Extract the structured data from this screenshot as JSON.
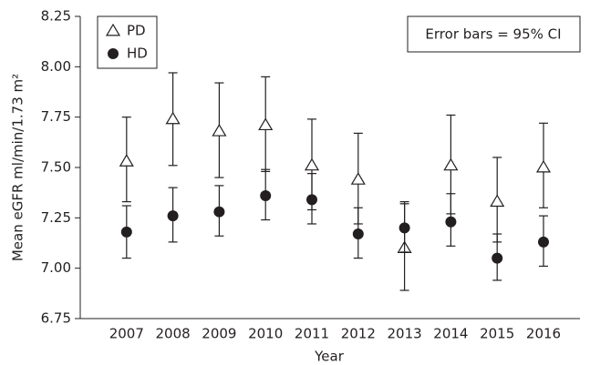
{
  "chart_data": {
    "type": "errorbar",
    "y_label": "Mean eGFR ml/min/1.73 m²",
    "x_label": "Year",
    "annotation": "Error bars = 95% CI",
    "categories": [
      "2007",
      "2008",
      "2009",
      "2010",
      "2011",
      "2012",
      "2013",
      "2014",
      "2015",
      "2016"
    ],
    "series": [
      {
        "name": "PD",
        "color": "#231f20",
        "marker": "triangle-open",
        "values": [
          7.53,
          7.74,
          7.68,
          7.71,
          7.51,
          7.44,
          7.1,
          7.51,
          7.33,
          7.5
        ],
        "lower": [
          7.33,
          7.51,
          7.45,
          7.48,
          7.29,
          7.22,
          6.89,
          7.27,
          7.13,
          7.3
        ],
        "upper": [
          7.75,
          7.97,
          7.92,
          7.95,
          7.74,
          7.67,
          7.32,
          7.76,
          7.55,
          7.72
        ]
      },
      {
        "name": "HD",
        "color": "#231f20",
        "marker": "circle",
        "values": [
          7.18,
          7.26,
          7.28,
          7.36,
          7.34,
          7.17,
          7.2,
          7.23,
          7.05,
          7.13
        ],
        "lower": [
          7.05,
          7.13,
          7.16,
          7.24,
          7.22,
          7.05,
          7.08,
          7.11,
          6.94,
          7.01
        ],
        "upper": [
          7.31,
          7.4,
          7.41,
          7.49,
          7.47,
          7.3,
          7.33,
          7.37,
          7.17,
          7.26
        ]
      }
    ],
    "ylim": [
      6.75,
      8.25
    ],
    "yticks": [
      6.75,
      {
        "value": 7,
        "label": "7.00"
      },
      7.25,
      {
        "value": 7.5,
        "label": "7.50"
      },
      7.75,
      {
        "value": 8,
        "label": "8.00"
      },
      8.25
    ]
  }
}
